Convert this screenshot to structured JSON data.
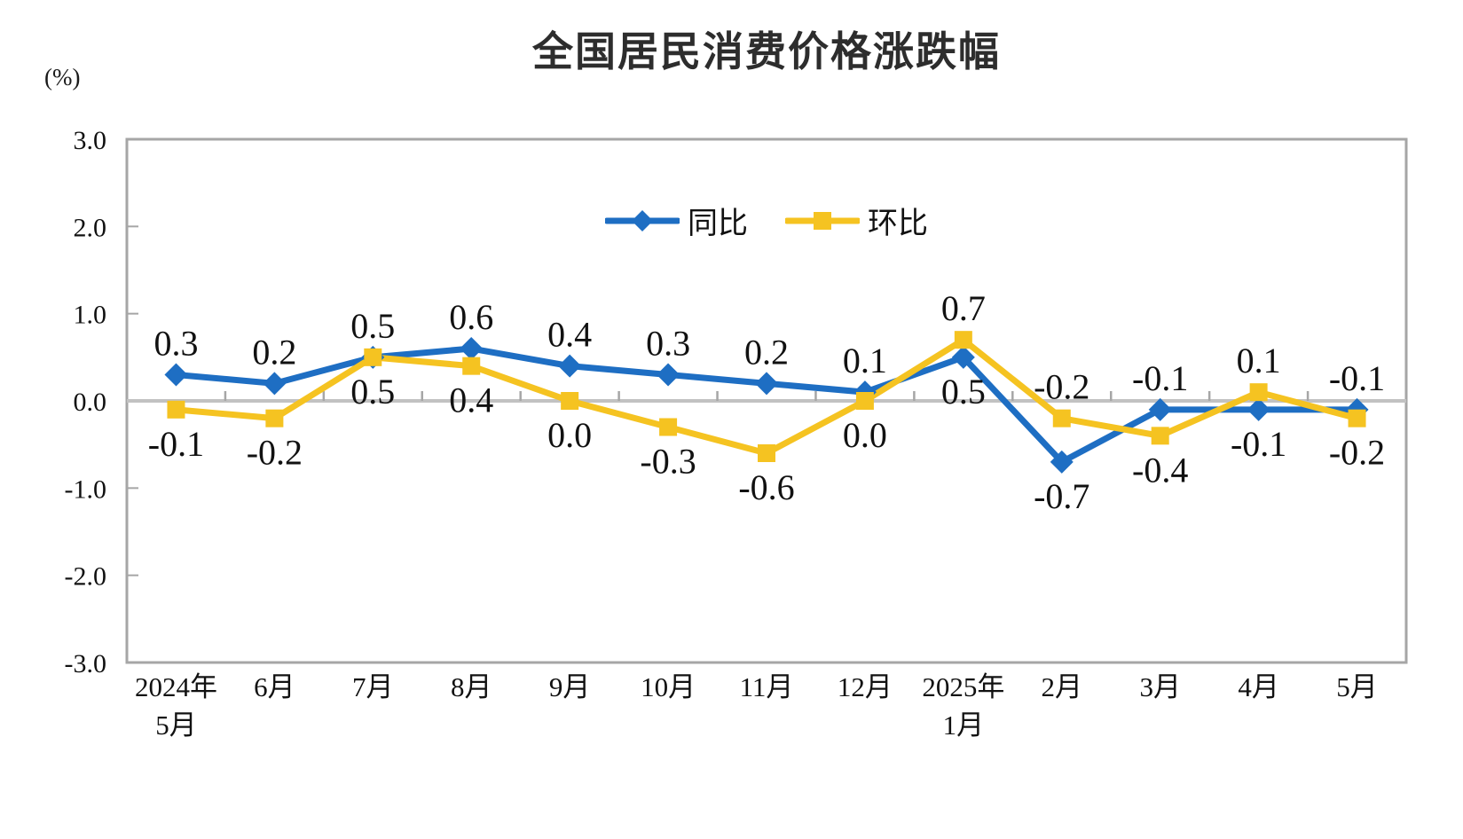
{
  "chart_data": {
    "type": "line",
    "title": "全国居民消费价格涨跌幅",
    "ylabel": "(%)",
    "xlabel": "",
    "ylim": [
      -3.0,
      3.0
    ],
    "ytick_step": 1.0,
    "ytick_labels": [
      "3.0",
      "2.0",
      "1.0",
      "0.0",
      "-1.0",
      "-2.0",
      "-3.0"
    ],
    "grid": false,
    "legend_position": "top-center-inside",
    "axis_color": "#A6A6A6",
    "zero_line_color": "#C2C2C2",
    "label_color": "#111111",
    "categories": [
      "2024年5月",
      "6月",
      "7月",
      "8月",
      "9月",
      "10月",
      "11月",
      "12月",
      "2025年1月",
      "2月",
      "3月",
      "4月",
      "5月"
    ],
    "category_lines": [
      [
        "2024年",
        "5月"
      ],
      [
        "6月"
      ],
      [
        "7月"
      ],
      [
        "8月"
      ],
      [
        "9月"
      ],
      [
        "10月"
      ],
      [
        "11月"
      ],
      [
        "12月"
      ],
      [
        "2025年",
        "1月"
      ],
      [
        "2月"
      ],
      [
        "3月"
      ],
      [
        "4月"
      ],
      [
        "5月"
      ]
    ],
    "series": [
      {
        "name": "同比",
        "color": "#1E6EC3",
        "marker": "diamond",
        "values": [
          0.3,
          0.2,
          0.5,
          0.6,
          0.4,
          0.3,
          0.2,
          0.1,
          0.5,
          -0.7,
          -0.1,
          -0.1,
          -0.1
        ],
        "label_positions": [
          "above",
          "above",
          "above",
          "above",
          "above",
          "above",
          "above",
          "above",
          "below",
          "below",
          "above",
          "below",
          "above"
        ]
      },
      {
        "name": "环比",
        "color": "#F5C321",
        "marker": "square",
        "values": [
          -0.1,
          -0.2,
          0.5,
          0.4,
          0.0,
          -0.3,
          -0.6,
          0.0,
          0.7,
          -0.2,
          -0.4,
          0.1,
          -0.2
        ],
        "label_positions": [
          "below",
          "below",
          "below",
          "below",
          "below",
          "below",
          "below",
          "below",
          "above",
          "above",
          "below",
          "above",
          "below"
        ]
      }
    ]
  }
}
